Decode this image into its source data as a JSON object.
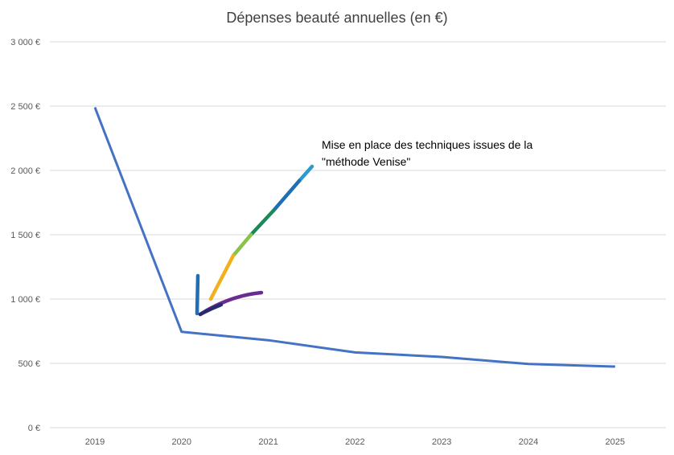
{
  "chart_data": {
    "type": "line",
    "title": "Dépenses beauté annuelles (en €)",
    "xlabel": "",
    "ylabel": "",
    "categories": [
      "2019",
      "2020",
      "2021",
      "2022",
      "2023",
      "2024",
      "2025"
    ],
    "series": [
      {
        "values": [
          2490,
          745,
          680,
          585,
          550,
          495,
          475
        ]
      }
    ],
    "ylim": [
      0,
      3000
    ],
    "yticks": [
      0,
      500,
      1000,
      1500,
      2000,
      2500,
      3000
    ],
    "ytick_labels": [
      "0 €",
      "500 €",
      "1 000 €",
      "1 500 €",
      "2 000 €",
      "2 500 €",
      "3 000 €"
    ],
    "grid": true,
    "legend": "none",
    "line_color": "#4472c4",
    "annotation": {
      "lines": [
        "Mise en place des techniques issues de la",
        "\"méthode Venise\""
      ],
      "arrow_colors": [
        "#1f6fb4",
        "#2e9ad0",
        "#1b8a5a",
        "#8bc34a",
        "#f2b01e",
        "#6a2c91",
        "#2a2a6e"
      ]
    }
  }
}
